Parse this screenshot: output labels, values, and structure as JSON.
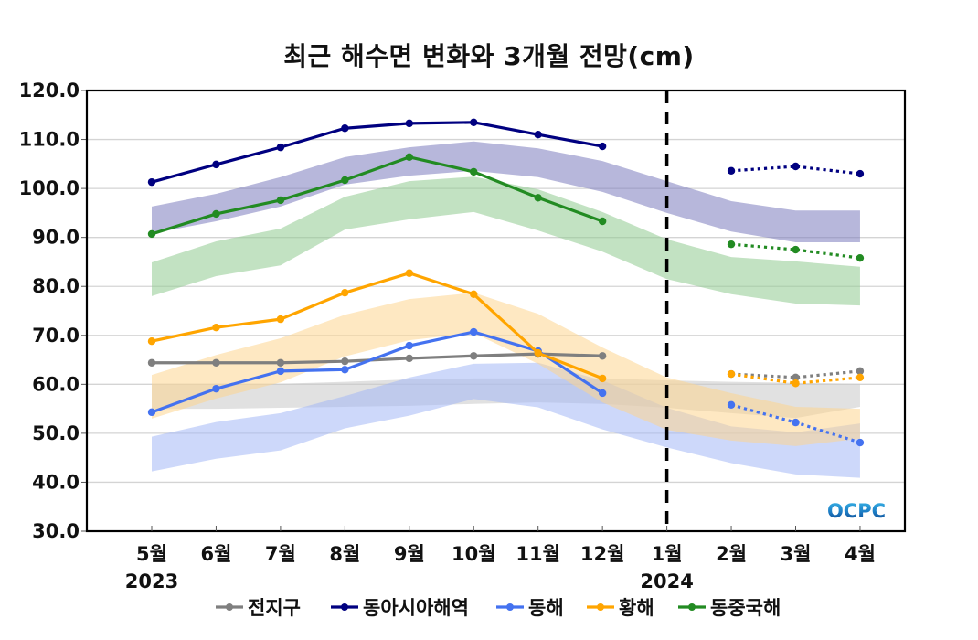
{
  "chart_data": {
    "type": "line",
    "title": "최근 해수면 변화와 3개월 전망(cm)",
    "xlabel": "",
    "ylabel": "",
    "ylim": [
      30,
      120
    ],
    "yticks": [
      "30.0",
      "40.0",
      "50.0",
      "60.0",
      "70.0",
      "80.0",
      "90.0",
      "100.0",
      "110.0",
      "120.0"
    ],
    "ytick_values": [
      30,
      40,
      50,
      60,
      70,
      80,
      90,
      100,
      110,
      120
    ],
    "categories": [
      "5월",
      "6월",
      "7월",
      "8월",
      "9월",
      "10월",
      "11월",
      "12월",
      "1월",
      "2월",
      "3월",
      "4월"
    ],
    "year_labels": [
      {
        "at": "5월",
        "label": "2023"
      },
      {
        "at": "1월",
        "label": "2024"
      }
    ],
    "divider_at": "1월",
    "grid": true,
    "legend_position": "bottom",
    "watermark": "OCPC",
    "series": [
      {
        "name": "전지구",
        "color": "#7f7f7f",
        "band_color": "#c8c8c8",
        "observed": [
          64.4,
          64.4,
          64.4,
          64.7,
          65.3,
          65.8,
          66.2,
          65.8,
          null,
          null,
          null,
          null
        ],
        "forecast": [
          null,
          null,
          null,
          null,
          null,
          null,
          null,
          null,
          null,
          62.1,
          61.4,
          62.7
        ],
        "band_upper": [
          60.1,
          60.1,
          60.1,
          60.5,
          61.0,
          61.2,
          61.2,
          61.2,
          60.8,
          60.5,
          60.3,
          60.1
        ],
        "band_lower": [
          55.0,
          55.0,
          55.2,
          55.4,
          55.6,
          56.0,
          56.3,
          56.0,
          55.2,
          54.1,
          53.1,
          55.4
        ]
      },
      {
        "name": "동아시아해역",
        "color": "#000080",
        "band_color": "#7b7bbd",
        "observed": [
          101.3,
          104.9,
          108.4,
          112.3,
          113.3,
          113.5,
          111.0,
          108.6,
          null,
          null,
          null,
          null
        ],
        "forecast": [
          null,
          null,
          null,
          null,
          null,
          null,
          null,
          null,
          null,
          103.6,
          104.5,
          103.0
        ],
        "band_upper": [
          96.3,
          98.9,
          102.3,
          106.4,
          108.4,
          109.6,
          108.2,
          105.6,
          101.5,
          97.4,
          95.5,
          95.5
        ],
        "band_lower": [
          90.8,
          93.3,
          96.3,
          100.8,
          102.6,
          103.6,
          102.3,
          99.3,
          95.0,
          91.2,
          89.0,
          89.0
        ]
      },
      {
        "name": "동해",
        "color": "#4472f0",
        "band_color": "#a4b8f5",
        "observed": [
          54.3,
          59.1,
          62.7,
          63.0,
          67.9,
          70.7,
          66.8,
          58.2,
          null,
          null,
          null,
          null
        ],
        "forecast": [
          null,
          null,
          null,
          null,
          null,
          null,
          null,
          null,
          null,
          55.8,
          52.2,
          48.1
        ],
        "band_upper": [
          49.3,
          52.3,
          54.1,
          57.6,
          61.4,
          64.2,
          64.4,
          60.8,
          55.2,
          51.4,
          50.2,
          52.0
        ],
        "band_lower": [
          42.2,
          44.8,
          46.5,
          51.0,
          53.6,
          57.0,
          55.3,
          50.8,
          47.1,
          43.9,
          41.6,
          40.9
        ]
      },
      {
        "name": "황해",
        "color": "#ffa500",
        "band_color": "#fdd590",
        "observed": [
          68.8,
          71.6,
          73.3,
          78.7,
          82.7,
          78.4,
          66.4,
          61.2,
          null,
          null,
          null,
          null
        ],
        "forecast": [
          null,
          null,
          null,
          null,
          null,
          null,
          null,
          null,
          null,
          62.1,
          60.2,
          61.4
        ],
        "band_upper": [
          61.9,
          66.0,
          69.4,
          74.2,
          77.4,
          78.7,
          74.4,
          67.5,
          61.4,
          58.2,
          55.4,
          55.0
        ],
        "band_lower": [
          53.0,
          57.1,
          60.4,
          65.7,
          69.0,
          70.5,
          64.2,
          56.3,
          50.7,
          48.5,
          47.4,
          48.9
        ]
      },
      {
        "name": "동중국해",
        "color": "#228b22",
        "band_color": "#8fca8f",
        "observed": [
          90.7,
          94.8,
          97.6,
          101.7,
          106.4,
          103.4,
          98.1,
          93.3,
          null,
          null,
          null,
          null
        ],
        "forecast": [
          null,
          null,
          null,
          null,
          null,
          null,
          null,
          null,
          null,
          88.6,
          87.5,
          85.8
        ],
        "band_upper": [
          84.9,
          89.2,
          91.8,
          98.3,
          101.5,
          102.4,
          99.8,
          95.2,
          89.6,
          86.0,
          85.1,
          84.0
        ],
        "band_lower": [
          78.0,
          82.1,
          84.3,
          91.6,
          93.7,
          95.2,
          91.4,
          87.1,
          81.5,
          78.4,
          76.5,
          76.1
        ]
      }
    ]
  }
}
